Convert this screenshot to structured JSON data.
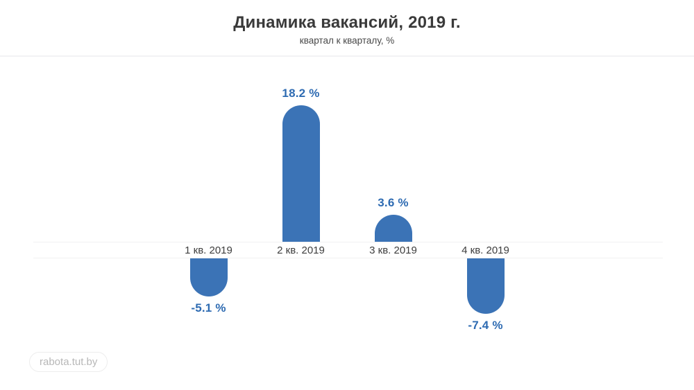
{
  "header": {
    "title": "Динамика вакансий, 2019 г.",
    "subtitle": "квартал к кварталу, %"
  },
  "watermark": {
    "label": "rabota.tut.by"
  },
  "chart_data": {
    "type": "bar",
    "title": "Динамика вакансий, 2019 г.",
    "subtitle": "квартал к кварталу, %",
    "categories": [
      "1 кв. 2019",
      "2 кв. 2019",
      "3 кв. 2019",
      "4 кв. 2019"
    ],
    "values": [
      -5.1,
      18.2,
      3.6,
      -7.4
    ],
    "value_labels": [
      "-5.1 %",
      "18.2 %",
      "3.6 %",
      "-7.4 %"
    ],
    "unit": "%",
    "baseline": 0,
    "ylim": [
      -10,
      20
    ],
    "grid": false,
    "legend": false,
    "bar_color": "#3b73b6",
    "value_label_color": "#2e6bb2",
    "category_label_color": "#3d3d3d",
    "axis_line_color": "#f0f0f2"
  }
}
